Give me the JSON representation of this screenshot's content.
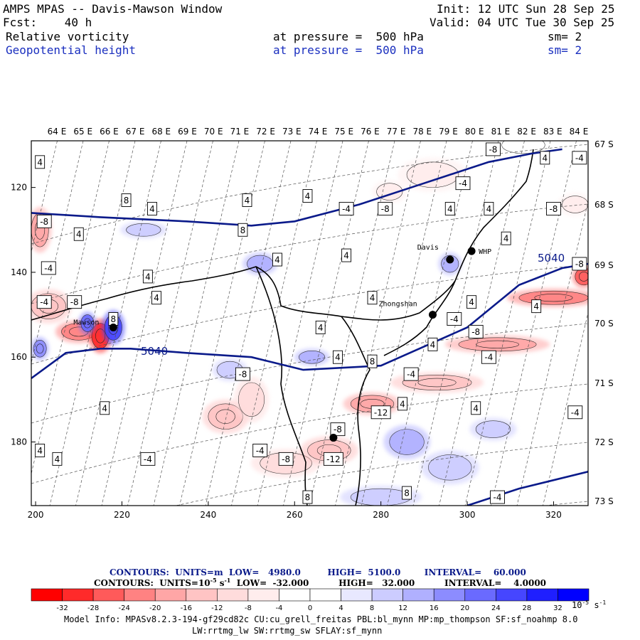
{
  "header": {
    "left_line1": "AMPS MPAS -- Davis-Mawson Window",
    "left_line2": "Fcst:    40 h",
    "init": "Init: 12 UTC Sun 28 Sep 25",
    "valid": "Valid: 04 UTC Tue 30 Sep 25"
  },
  "fields": [
    {
      "name": "Relative vorticity",
      "level": "at pressure =  500 hPa",
      "sm": "sm= 2",
      "color": "#000000"
    },
    {
      "name": "Geopotential height",
      "level": "at pressure =  500 hPa",
      "sm": "sm= 2",
      "color": "#1a2fbf"
    }
  ],
  "chart_data": {
    "type": "heatmap",
    "title": "Relative vorticity / Geopotential height at 500 hPa",
    "x_ticks": [
      "200",
      "220",
      "240",
      "260",
      "280",
      "300",
      "320"
    ],
    "y_ticks": [
      "120",
      "140",
      "160",
      "180"
    ],
    "x_range": [
      199,
      328
    ],
    "y_range": [
      109,
      195
    ],
    "lon_labels": [
      "64 E",
      "65 E",
      "66 E",
      "67 E",
      "68 E",
      "69 E",
      "70 E",
      "71 E",
      "72 E",
      "73 E",
      "74 E",
      "75 E",
      "76 E",
      "77 E",
      "78 E",
      "79 E",
      "80 E",
      "81 E",
      "82 E",
      "83 E",
      "84 E"
    ],
    "lat_labels": [
      "67 S",
      "68 S",
      "69 S",
      "70 S",
      "71 S",
      "72 S",
      "73 S"
    ],
    "stations": [
      {
        "name": "Davis",
        "x": 296,
        "y": 137
      },
      {
        "name": "WHP",
        "x": 301,
        "y": 135
      },
      {
        "name": "Zhongshan",
        "x": 292,
        "y": 150
      },
      {
        "name": "Mawson",
        "x": 218,
        "y": 153
      },
      {
        "name": "",
        "x": 269,
        "y": 179
      }
    ],
    "height_contours": [
      {
        "label": "5040",
        "points": [
          [
            199,
            126
          ],
          [
            215,
            127
          ],
          [
            235,
            128
          ],
          [
            250,
            129
          ],
          [
            260,
            128
          ],
          [
            275,
            124
          ],
          [
            290,
            119
          ],
          [
            305,
            114
          ],
          [
            315,
            112
          ],
          [
            322,
            111
          ]
        ]
      },
      {
        "label": "5040",
        "points": [
          [
            199,
            165
          ],
          [
            207,
            159
          ],
          [
            215,
            158
          ],
          [
            222,
            158
          ],
          [
            235,
            159
          ],
          [
            250,
            160
          ],
          [
            262,
            163
          ],
          [
            280,
            162
          ],
          [
            300,
            153
          ],
          [
            312,
            143
          ],
          [
            322,
            139
          ],
          [
            328,
            138
          ]
        ]
      },
      {
        "label": "",
        "points": [
          [
            300,
            195
          ],
          [
            312,
            191
          ],
          [
            328,
            187
          ]
        ]
      }
    ],
    "vorticity_blobs": [
      {
        "x": 201,
        "y": 130,
        "rx": 2,
        "ry": 4,
        "v": -20
      },
      {
        "x": 203,
        "y": 148,
        "rx": 4,
        "ry": 3,
        "v": -16
      },
      {
        "x": 210,
        "y": 154,
        "rx": 4,
        "ry": 2,
        "v": -24
      },
      {
        "x": 215,
        "y": 155,
        "rx": 2,
        "ry": 3,
        "v": -32
      },
      {
        "x": 218,
        "y": 153,
        "rx": 2,
        "ry": 3,
        "v": 24
      },
      {
        "x": 212,
        "y": 152,
        "rx": 1.5,
        "ry": 2,
        "v": 20
      },
      {
        "x": 201,
        "y": 158,
        "rx": 1.5,
        "ry": 2,
        "v": 16
      },
      {
        "x": 244,
        "y": 174,
        "rx": 4,
        "ry": 3,
        "v": -16
      },
      {
        "x": 250,
        "y": 170,
        "rx": 3,
        "ry": 4,
        "v": -12
      },
      {
        "x": 258,
        "y": 185,
        "rx": 6,
        "ry": 2.5,
        "v": -12
      },
      {
        "x": 268,
        "y": 182,
        "rx": 5,
        "ry": 2.5,
        "v": -16
      },
      {
        "x": 278,
        "y": 171,
        "rx": 5,
        "ry": 2,
        "v": -20
      },
      {
        "x": 293,
        "y": 166,
        "rx": 8,
        "ry": 1.8,
        "v": -16
      },
      {
        "x": 307,
        "y": 157,
        "rx": 9,
        "ry": 1.6,
        "v": -20
      },
      {
        "x": 320,
        "y": 146,
        "rx": 8,
        "ry": 1.6,
        "v": -24
      },
      {
        "x": 327,
        "y": 141,
        "rx": 2,
        "ry": 2,
        "v": -28
      },
      {
        "x": 282,
        "y": 121,
        "rx": 3,
        "ry": 2,
        "v": -8
      },
      {
        "x": 292,
        "y": 117,
        "rx": 6,
        "ry": 3,
        "v": -8
      },
      {
        "x": 313,
        "y": 110,
        "rx": 5,
        "ry": 2,
        "v": -4
      },
      {
        "x": 325,
        "y": 124,
        "rx": 3,
        "ry": 2,
        "v": -8
      },
      {
        "x": 252,
        "y": 138,
        "rx": 3,
        "ry": 2,
        "v": 12
      },
      {
        "x": 245,
        "y": 163,
        "rx": 3,
        "ry": 2,
        "v": 8
      },
      {
        "x": 264,
        "y": 160,
        "rx": 3,
        "ry": 1.5,
        "v": 12
      },
      {
        "x": 296,
        "y": 138,
        "rx": 2,
        "ry": 2,
        "v": 12
      },
      {
        "x": 286,
        "y": 180,
        "rx": 4,
        "ry": 3,
        "v": 12
      },
      {
        "x": 296,
        "y": 186,
        "rx": 5,
        "ry": 3,
        "v": 8
      },
      {
        "x": 306,
        "y": 177,
        "rx": 4,
        "ry": 2,
        "v": 8
      },
      {
        "x": 280,
        "y": 193,
        "rx": 7,
        "ry": 2,
        "v": 8
      },
      {
        "x": 225,
        "y": 130,
        "rx": 4,
        "ry": 1.5,
        "v": 8
      }
    ],
    "contour_labels": [
      {
        "t": "4",
        "x": 201,
        "y": 114
      },
      {
        "t": "8",
        "x": 221,
        "y": 123
      },
      {
        "t": "4",
        "x": 227,
        "y": 125
      },
      {
        "t": "4",
        "x": 249,
        "y": 123
      },
      {
        "t": "4",
        "x": 263,
        "y": 122
      },
      {
        "t": "-4",
        "x": 272,
        "y": 125
      },
      {
        "t": "-8",
        "x": 281,
        "y": 125
      },
      {
        "t": "-4",
        "x": 299,
        "y": 119
      },
      {
        "t": "4",
        "x": 296,
        "y": 125
      },
      {
        "t": "4",
        "x": 305,
        "y": 125
      },
      {
        "t": "-8",
        "x": 306,
        "y": 111
      },
      {
        "t": "4",
        "x": 318,
        "y": 113
      },
      {
        "t": "-8",
        "x": 320,
        "y": 125
      },
      {
        "t": "-4",
        "x": 326,
        "y": 113
      },
      {
        "t": "-8",
        "x": 202,
        "y": 128
      },
      {
        "t": "4",
        "x": 210,
        "y": 131
      },
      {
        "t": "8",
        "x": 248,
        "y": 130
      },
      {
        "t": "4",
        "x": 256,
        "y": 137
      },
      {
        "t": "4",
        "x": 272,
        "y": 136
      },
      {
        "t": "4",
        "x": 309,
        "y": 132
      },
      {
        "t": "-4",
        "x": 203,
        "y": 139
      },
      {
        "t": "4",
        "x": 226,
        "y": 141
      },
      {
        "t": "-8",
        "x": 209,
        "y": 147
      },
      {
        "t": "-4",
        "x": 202,
        "y": 147
      },
      {
        "t": "4",
        "x": 228,
        "y": 146
      },
      {
        "t": "8",
        "x": 218,
        "y": 151
      },
      {
        "t": "4",
        "x": 278,
        "y": 146
      },
      {
        "t": "4",
        "x": 266,
        "y": 153
      },
      {
        "t": "-4",
        "x": 297,
        "y": 151
      },
      {
        "t": "4",
        "x": 301,
        "y": 147
      },
      {
        "t": "-8",
        "x": 302,
        "y": 154
      },
      {
        "t": "4",
        "x": 316,
        "y": 148
      },
      {
        "t": "-8",
        "x": 326,
        "y": 138
      },
      {
        "t": "4",
        "x": 270,
        "y": 160
      },
      {
        "t": "4",
        "x": 292,
        "y": 157
      },
      {
        "t": "-4",
        "x": 305,
        "y": 160
      },
      {
        "t": "8",
        "x": 278,
        "y": 161
      },
      {
        "t": "-8",
        "x": 248,
        "y": 164
      },
      {
        "t": "-4",
        "x": 287,
        "y": 164
      },
      {
        "t": "4",
        "x": 216,
        "y": 172
      },
      {
        "t": "-12",
        "x": 280,
        "y": 173
      },
      {
        "t": "4",
        "x": 285,
        "y": 171
      },
      {
        "t": "4",
        "x": 302,
        "y": 172
      },
      {
        "t": "-4",
        "x": 325,
        "y": 173
      },
      {
        "t": "-8",
        "x": 270,
        "y": 177
      },
      {
        "t": "-4",
        "x": 252,
        "y": 182
      },
      {
        "t": "-8",
        "x": 258,
        "y": 184
      },
      {
        "t": "-12",
        "x": 269,
        "y": 184
      },
      {
        "t": "4",
        "x": 201,
        "y": 182
      },
      {
        "t": "4",
        "x": 205,
        "y": 184
      },
      {
        "t": "-4",
        "x": 226,
        "y": 184
      },
      {
        "t": "8",
        "x": 263,
        "y": 193
      },
      {
        "t": "8",
        "x": 286,
        "y": 192
      },
      {
        "t": "-4",
        "x": 307,
        "y": 193
      }
    ],
    "station_labels": [
      "Davis",
      "WHP",
      "Zhongshan",
      "Mawson"
    ],
    "height_label": "5040"
  },
  "colorbar": {
    "ticks": [
      "-32",
      "-28",
      "-24",
      "-20",
      "-16",
      "-12",
      "-8",
      "-4",
      "0",
      "4",
      "8",
      "12",
      "16",
      "20",
      "24",
      "28",
      "32"
    ],
    "colors": [
      "#ff0000",
      "#ff2a2a",
      "#ff5a5a",
      "#ff8282",
      "#ffa6a6",
      "#ffc4c4",
      "#ffdcdc",
      "#ffeded",
      "#ffffff",
      "#ffffff",
      "#e8e8ff",
      "#ccccff",
      "#b0b0ff",
      "#8c8cff",
      "#6a6aff",
      "#4646ff",
      "#1f1fff",
      "#0000ff"
    ],
    "units": "10",
    "units_exp": "-5",
    "units_suffix": " s",
    "units_exp2": "-1"
  },
  "contour_info": {
    "line1": "CONTOURS:  UNITS=m  LOW=   4980.0         HIGH=  5100.0        INTERVAL=    60.000",
    "line2_a": "CONTOURS:  UNITS=10",
    "line2_exp": "-5",
    "line2_b": " s",
    "line2_exp2": "-1",
    "line2_c": "  LOW=  -32.000          HIGH=   32.000          INTERVAL=    4.0000"
  },
  "model_info": {
    "line1": "Model Info: MPASv8.2.3-194-gf29cd82c CU:cu_grell_freitas PBL:bl_mynn MP:mp_thompson SF:sf_noahmp 8.0",
    "line2": "LW:rrtmg_lw SW:rrtmg_sw SFLAY:sf_mynn"
  }
}
